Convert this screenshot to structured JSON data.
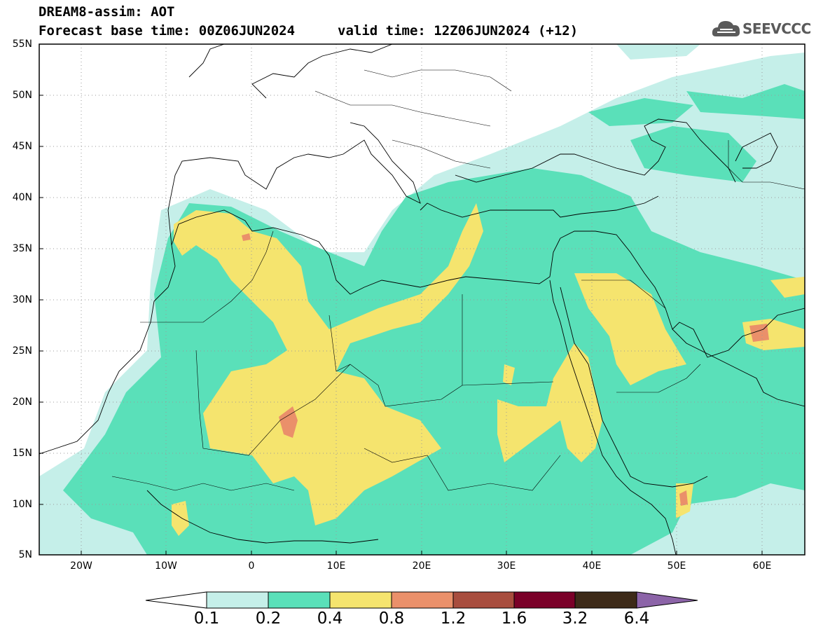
{
  "title": {
    "line1": "DREAM8-assim: AOT",
    "line2": "Forecast base time: 00Z06JUN2024",
    "valid": "valid time: 12Z06JUN2024 (+12)"
  },
  "logo": {
    "text": "SEEVCCC",
    "icon": "cloud-logo-icon"
  },
  "axes": {
    "lat_labels": [
      "55N",
      "50N",
      "45N",
      "40N",
      "35N",
      "30N",
      "25N",
      "20N",
      "15N",
      "10N",
      "5N"
    ],
    "lon_labels": [
      "20W",
      "10W",
      "0",
      "10E",
      "20E",
      "30E",
      "40E",
      "50E",
      "60E"
    ],
    "lat_range": [
      5,
      55
    ],
    "lon_range": [
      -25,
      65
    ]
  },
  "colorbar": {
    "labels": [
      "0.1",
      "0.2",
      "0.4",
      "0.8",
      "1.2",
      "1.6",
      "3.2",
      "6.4"
    ],
    "colors": [
      "#ffffff",
      "#c5efe9",
      "#5ae0b9",
      "#f5e46e",
      "#ea906a",
      "#a84d3e",
      "#7a0028",
      "#3d2a18",
      "#8c64a8"
    ]
  },
  "colors": {
    "level1": "#c5efe9",
    "level2": "#5ae0b9",
    "level3": "#f5e46e",
    "level4": "#ea906a"
  }
}
